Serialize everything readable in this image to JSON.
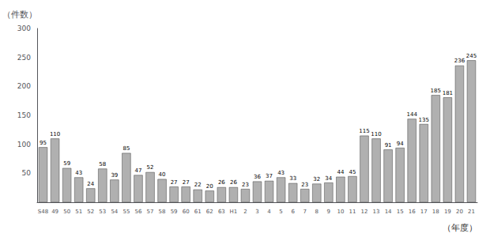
{
  "chart_data": {
    "type": "bar",
    "categories": [
      "S48",
      "49",
      "50",
      "51",
      "52",
      "53",
      "54",
      "55",
      "56",
      "57",
      "58",
      "59",
      "60",
      "61",
      "62",
      "63",
      "H1",
      "2",
      "3",
      "4",
      "5",
      "6",
      "7",
      "8",
      "9",
      "10",
      "11",
      "12",
      "13",
      "14",
      "15",
      "16",
      "17",
      "18",
      "19",
      "20",
      "21"
    ],
    "values": [
      95,
      110,
      59,
      43,
      24,
      58,
      39,
      85,
      47,
      52,
      40,
      27,
      27,
      22,
      20,
      26,
      26,
      23,
      36,
      37,
      43,
      33,
      23,
      32,
      34,
      44,
      45,
      115,
      110,
      91,
      94,
      144,
      135,
      185,
      181,
      236,
      245
    ],
    "color": "#b0b0b0",
    "ylabel": "（件数）",
    "xlabel": "（年度）",
    "ylim": [
      0,
      300
    ],
    "yticks": [
      50,
      100,
      150,
      200,
      250,
      300
    ],
    "grid": false,
    "data_labels": true
  }
}
